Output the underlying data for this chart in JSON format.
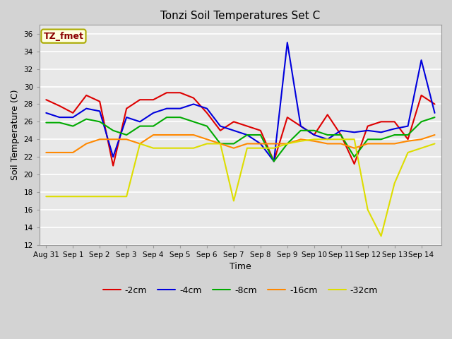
{
  "title": "Tonzi Soil Temperatures Set C",
  "xlabel": "Time",
  "ylabel": "Soil Temperature (C)",
  "ylim": [
    12,
    37
  ],
  "yticks": [
    12,
    14,
    16,
    18,
    20,
    22,
    24,
    26,
    28,
    30,
    32,
    34,
    36
  ],
  "annotation_text": "TZ_fmet",
  "annotation_color": "#8b0000",
  "annotation_bg": "#ffffe0",
  "annotation_border": "#aaaa00",
  "series_order": [
    "-2cm",
    "-4cm",
    "-8cm",
    "-16cm",
    "-32cm"
  ],
  "series": {
    "-2cm": {
      "color": "#dd0000",
      "lw": 1.5
    },
    "-4cm": {
      "color": "#0000dd",
      "lw": 1.5
    },
    "-8cm": {
      "color": "#00aa00",
      "lw": 1.5
    },
    "-16cm": {
      "color": "#ff8800",
      "lw": 1.5
    },
    "-32cm": {
      "color": "#dddd00",
      "lw": 1.5
    }
  },
  "data": {
    "-2cm": [
      28.5,
      27.8,
      27.0,
      29.0,
      28.3,
      21.0,
      27.5,
      28.5,
      28.5,
      29.3,
      29.3,
      28.7,
      27.0,
      25.0,
      26.0,
      25.5,
      25.0,
      21.5,
      26.5,
      25.5,
      24.5,
      26.8,
      24.5,
      21.2,
      25.5,
      26.0,
      26.0,
      24.0,
      29.0,
      28.0
    ],
    "-4cm": [
      27.0,
      26.5,
      26.5,
      27.5,
      27.2,
      22.0,
      26.5,
      26.0,
      27.0,
      27.5,
      27.5,
      28.0,
      27.5,
      25.5,
      25.0,
      24.5,
      23.5,
      21.5,
      35.0,
      25.5,
      24.5,
      24.0,
      25.0,
      24.8,
      25.0,
      24.8,
      25.2,
      25.5,
      33.0,
      27.0
    ],
    "-8cm": [
      25.9,
      25.9,
      25.5,
      26.3,
      26.0,
      25.0,
      24.5,
      25.5,
      25.5,
      26.5,
      26.5,
      26.0,
      25.5,
      23.5,
      23.5,
      24.5,
      24.5,
      21.5,
      23.5,
      25.0,
      25.0,
      24.5,
      24.5,
      22.0,
      24.0,
      24.0,
      24.5,
      24.5,
      26.0,
      26.5
    ],
    "-16cm": [
      22.5,
      22.5,
      22.5,
      23.5,
      24.0,
      24.0,
      24.0,
      23.5,
      24.5,
      24.5,
      24.5,
      24.5,
      24.0,
      23.5,
      23.0,
      23.5,
      23.5,
      23.5,
      23.5,
      24.0,
      23.8,
      23.5,
      23.5,
      23.0,
      23.5,
      23.5,
      23.5,
      23.8,
      24.0,
      24.5
    ],
    "-32cm": [
      17.5,
      17.5,
      17.5,
      17.5,
      17.5,
      17.5,
      17.5,
      23.5,
      23.0,
      23.0,
      23.0,
      23.0,
      23.5,
      23.5,
      17.0,
      23.0,
      23.0,
      23.0,
      23.5,
      23.8,
      24.0,
      24.0,
      24.0,
      24.0,
      16.0,
      13.0,
      19.0,
      22.5,
      23.0,
      23.5
    ]
  },
  "n_points": 30,
  "xtick_labels": [
    "Aug 31",
    "Sep 1",
    "Sep 2",
    "Sep 3",
    "Sep 4",
    "Sep 5",
    "Sep 6",
    "Sep 7",
    "Sep 8",
    "Sep 9",
    "Sep 10",
    "Sep 11",
    "Sep 12",
    "Sep 13",
    "Sep 14"
  ],
  "fig_width": 6.4,
  "fig_height": 4.8,
  "dpi": 100
}
